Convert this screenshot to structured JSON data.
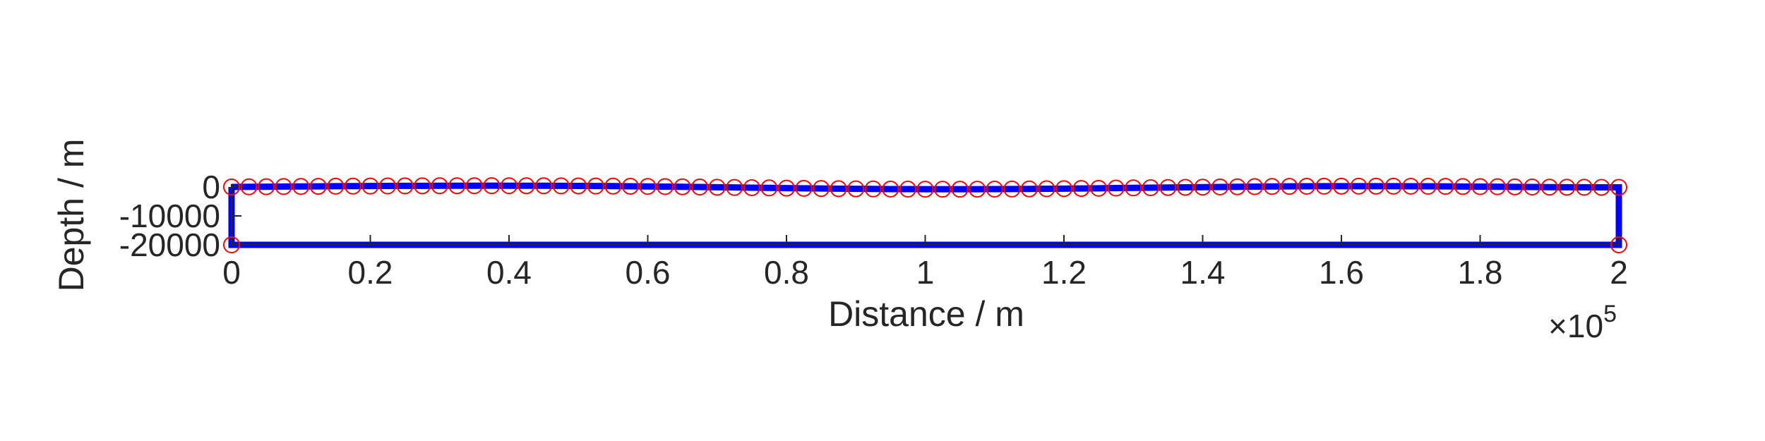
{
  "chart_data": {
    "type": "line",
    "title": "",
    "xlabel": "Distance / m",
    "ylabel": "Depth / m",
    "xlim": [
      0,
      200000
    ],
    "ylim": [
      -20000,
      0
    ],
    "x_ticks": [
      0,
      20000,
      40000,
      60000,
      80000,
      100000,
      120000,
      140000,
      160000,
      180000,
      200000
    ],
    "x_tick_labels": [
      "0",
      "0.2",
      "0.4",
      "0.6",
      "0.8",
      "1",
      "1.2",
      "1.4",
      "1.6",
      "1.8",
      "2"
    ],
    "x_exponent_label": "×10^5",
    "y_ticks": [
      0,
      -10000,
      -20000
    ],
    "y_tick_labels": [
      "0",
      "-10000",
      "-20000"
    ],
    "grid": false,
    "colors": {
      "outline": "#0000ff",
      "nodes": "#ff0000",
      "text": "#262626"
    },
    "series": [
      {
        "marker": "circle",
        "x": [
          0,
          2500,
          5000,
          7500,
          10000,
          12500,
          15000,
          17500,
          20000,
          22500,
          25000,
          27500,
          30000,
          32500,
          35000,
          37500,
          40000,
          42500,
          45000,
          47500,
          50000,
          52500,
          55000,
          57500,
          60000,
          62500,
          65000,
          67500,
          70000,
          72500,
          75000,
          77500,
          80000,
          82500,
          85000,
          87500,
          90000,
          92500,
          95000,
          97500,
          100000,
          102500,
          105000,
          107500,
          110000,
          112500,
          115000,
          117500,
          120000,
          122500,
          125000,
          127500,
          130000,
          132500,
          135000,
          137500,
          140000,
          142500,
          145000,
          147500,
          150000,
          152500,
          155000,
          157500,
          160000,
          162500,
          165000,
          167500,
          170000,
          172500,
          175000,
          177500,
          180000,
          182500,
          185000,
          187500,
          190000,
          192500,
          195000,
          197500,
          200000
        ],
        "y": [
          0,
          47,
          93,
          138,
          181,
          222,
          260,
          296,
          328,
          357,
          383,
          404,
          421,
          433,
          441,
          443,
          440,
          432,
          417,
          397,
          370,
          337,
          297,
          250,
          196,
          135,
          67,
          -6,
          -82,
          -159,
          -237,
          -313,
          -388,
          -458,
          -524,
          -584,
          -636,
          -681,
          -717,
          -744,
          -761,
          -769,
          -766,
          -754,
          -733,
          -702,
          -664,
          -617,
          -565,
          -507,
          -445,
          -380,
          -313,
          -245,
          -177,
          -111,
          -47,
          14,
          71,
          123,
          169,
          208,
          240,
          264,
          280,
          287,
          285,
          275,
          257,
          232,
          200,
          163,
          122,
          79,
          35,
          -8,
          -47,
          -80,
          -104,
          -116,
          -116
        ]
      },
      {
        "name": "",
        "marker": "circle",
        "x": [
          0,
          200000
        ],
        "y": [
          -20000,
          -20000
        ]
      }
    ]
  }
}
